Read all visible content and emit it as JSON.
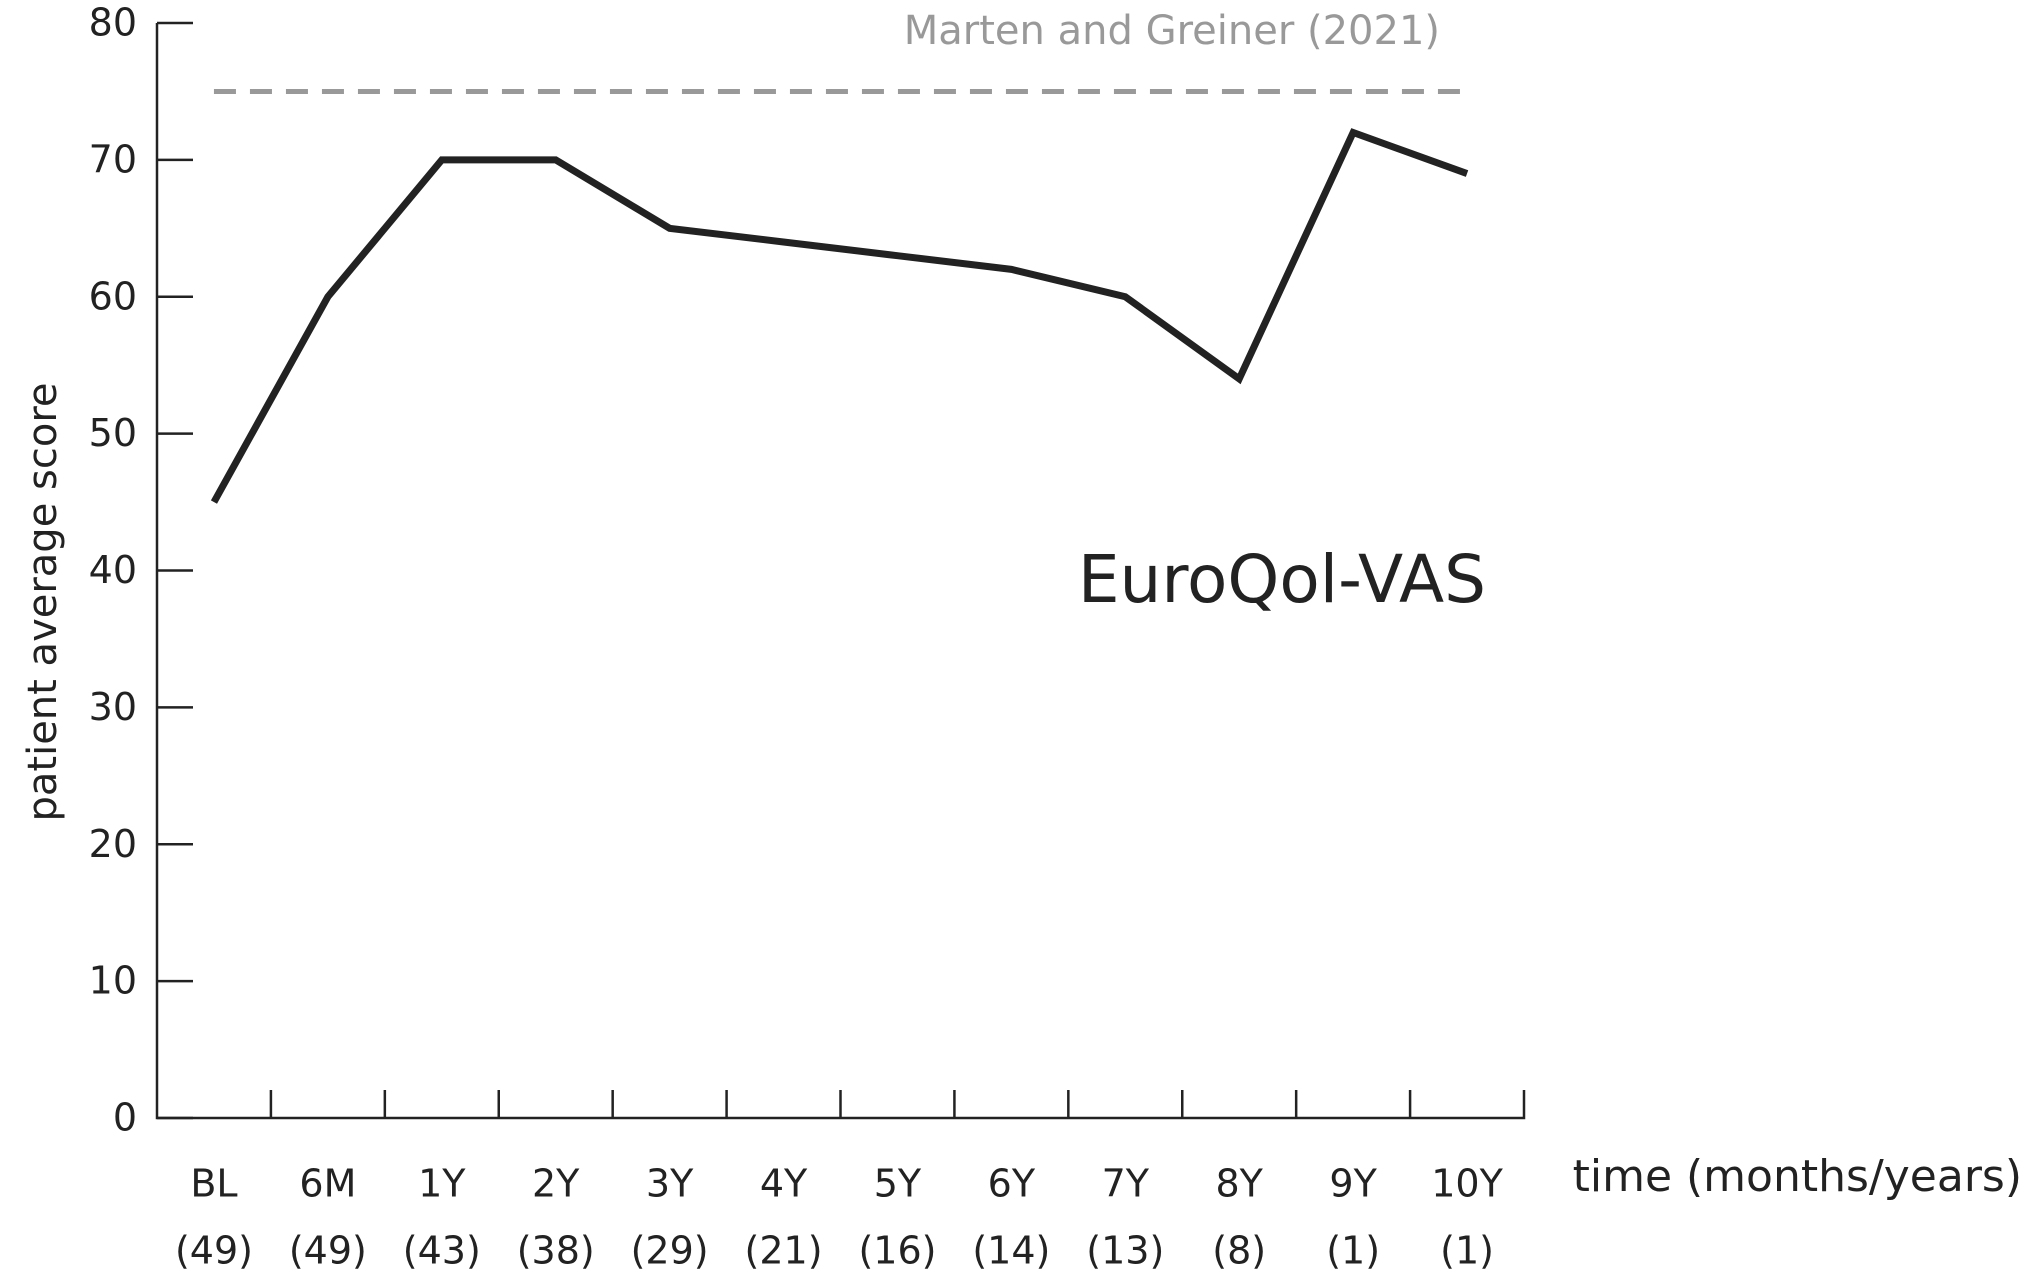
{
  "chart_data": {
    "type": "line",
    "categories": [
      "BL",
      "6M",
      "1Y",
      "2Y",
      "3Y",
      "4Y",
      "5Y",
      "6Y",
      "7Y",
      "8Y",
      "9Y",
      "10Y"
    ],
    "sample_sizes": [
      "(49)",
      "(49)",
      "(43)",
      "(38)",
      "(29)",
      "(21)",
      "(16)",
      "(14)",
      "(13)",
      "(8)",
      "(1)",
      "(1)"
    ],
    "series": [
      {
        "name": "EuroQol-VAS",
        "color": "#222222",
        "values": [
          45,
          60,
          70,
          70,
          65,
          64,
          63,
          62,
          60,
          54,
          72,
          69
        ]
      }
    ],
    "reference": {
      "value": 75,
      "label": "Marten and Greiner (2021)",
      "color": "#999999"
    },
    "ylabel": "patient average score",
    "xlabel": "time (months/years)",
    "ylim": [
      0,
      80
    ],
    "yticks": [
      0,
      10,
      20,
      30,
      40,
      50,
      60,
      70,
      80
    ],
    "grid": false
  }
}
